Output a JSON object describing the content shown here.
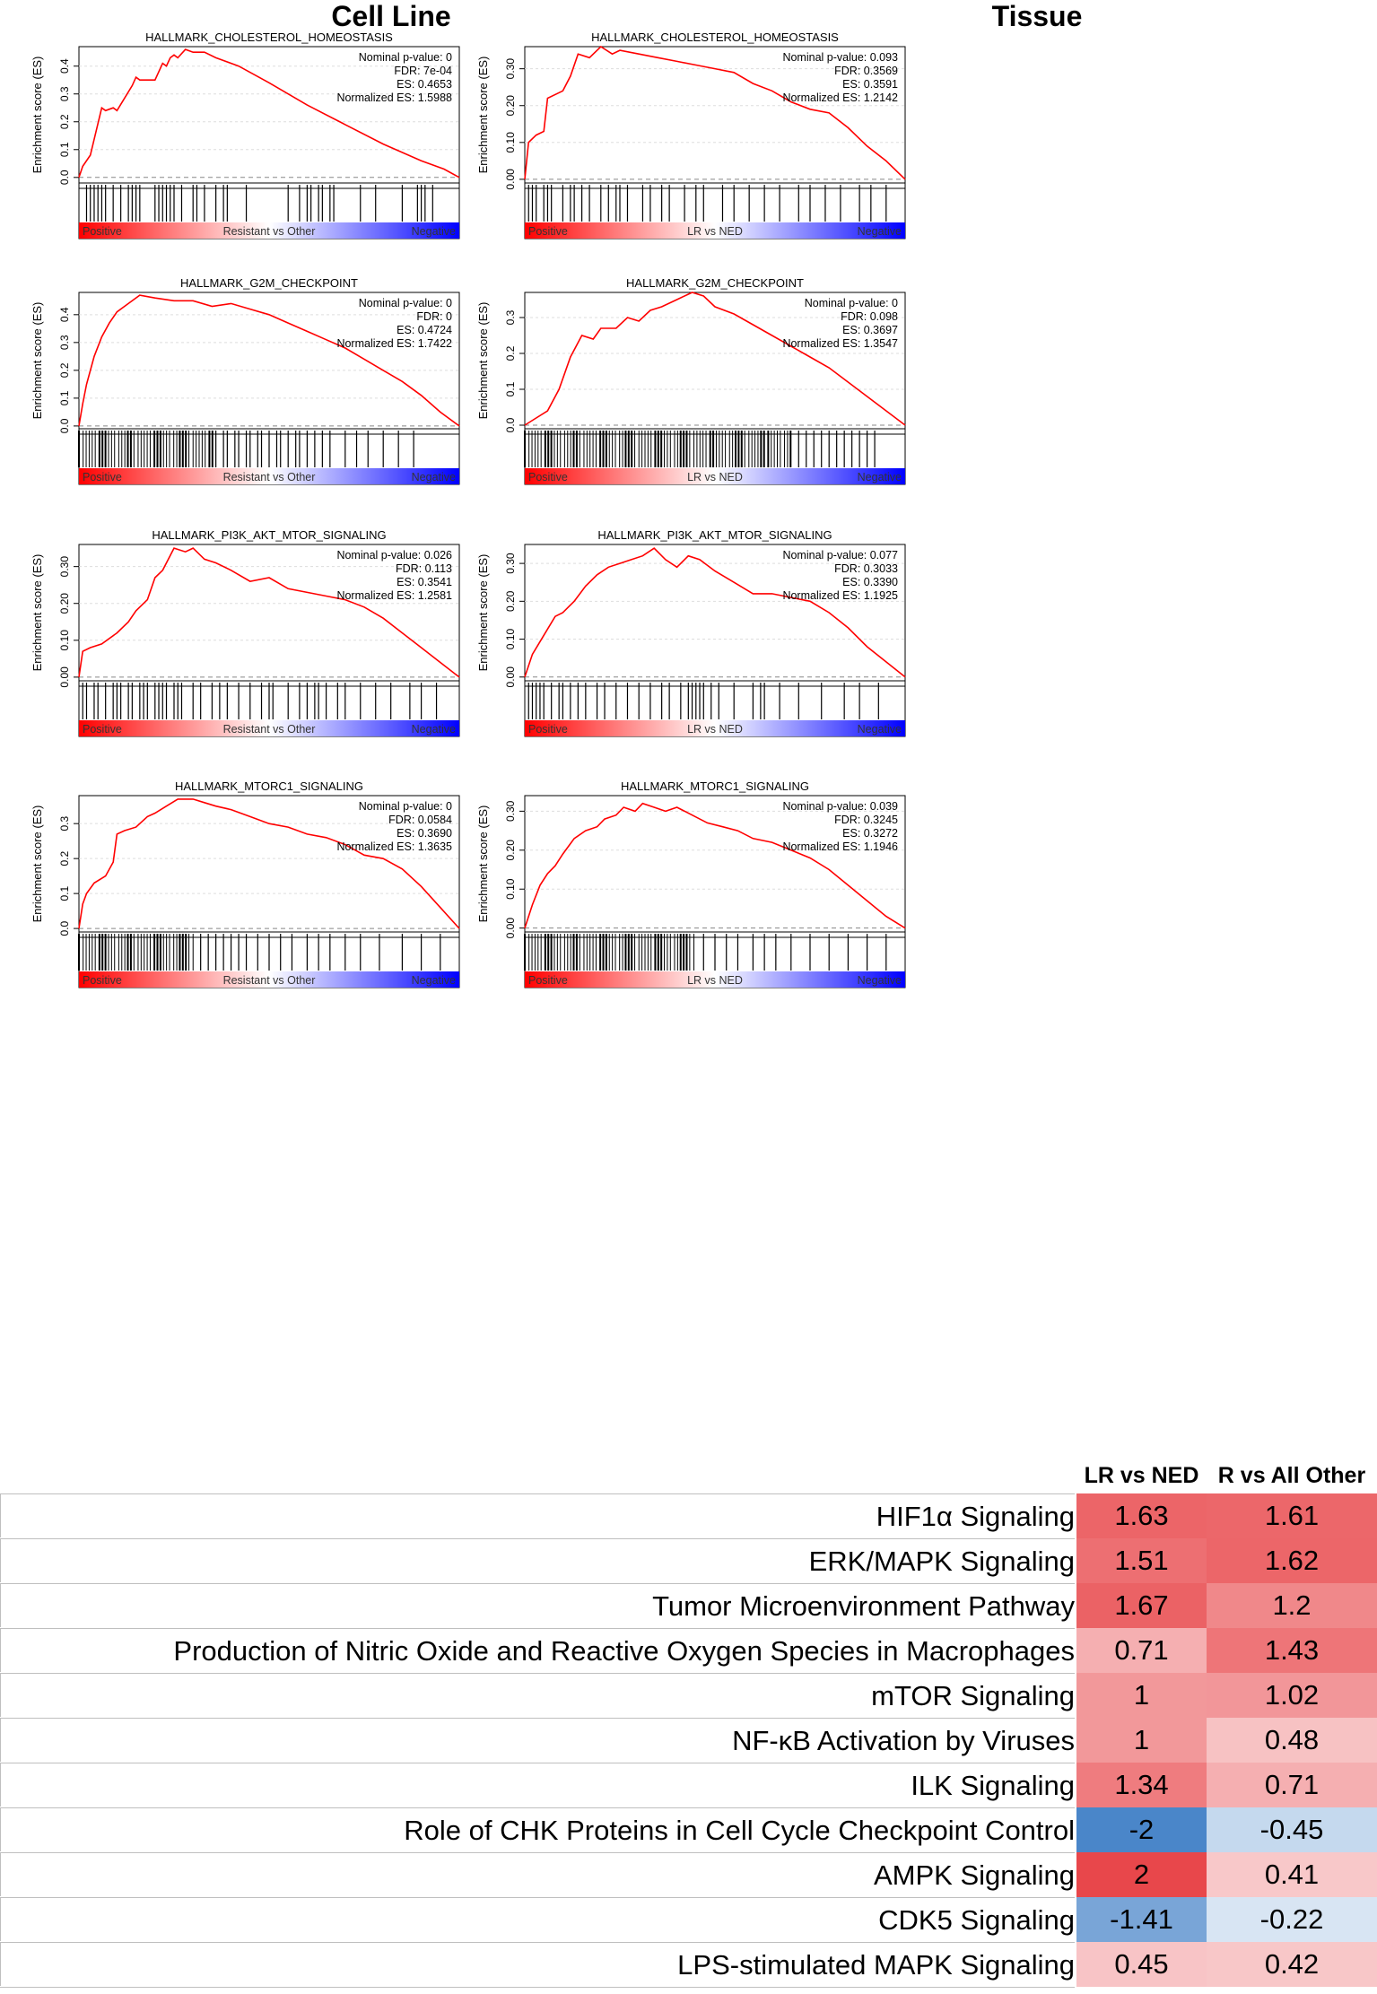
{
  "headers": {
    "left": "Cell Line",
    "right": "Tissue"
  },
  "colors": {
    "curve": "#ff0000",
    "positive": "#ff0000",
    "negative": "#0000ff",
    "heat_pos": "#e8474b",
    "heat_neg": "#4a86c9"
  },
  "chart_data": [
    {
      "type": "line",
      "column": "Cell Line",
      "title": "HALLMARK_CHOLESTEROL_HOMEOSTASIS",
      "ylabel": "Enrichment score (ES)",
      "ylim": [
        -0.02,
        0.47
      ],
      "yticks": [
        "0.0",
        "0.1",
        "0.2",
        "0.3",
        "0.4"
      ],
      "ytick_values": [
        0,
        0.1,
        0.2,
        0.3,
        0.4
      ],
      "stats": [
        "Nominal p-value: 0",
        "FDR: 7e-04",
        "ES: 0.4653",
        "Normalized ES: 1.5988"
      ],
      "gradient_labels": [
        "Positive",
        "Resistant vs Other",
        "Negative"
      ],
      "x": [
        0,
        0.01,
        0.03,
        0.06,
        0.07,
        0.09,
        0.1,
        0.14,
        0.15,
        0.16,
        0.2,
        0.22,
        0.23,
        0.24,
        0.25,
        0.26,
        0.28,
        0.3,
        0.33,
        0.36,
        0.42,
        0.5,
        0.6,
        0.7,
        0.8,
        0.9,
        0.96,
        1.0
      ],
      "values": [
        0,
        0.04,
        0.08,
        0.25,
        0.24,
        0.25,
        0.24,
        0.33,
        0.36,
        0.35,
        0.35,
        0.41,
        0.4,
        0.43,
        0.44,
        0.43,
        0.46,
        0.45,
        0.45,
        0.43,
        0.4,
        0.34,
        0.26,
        0.19,
        0.12,
        0.06,
        0.03,
        0
      ],
      "hits": [
        0.02,
        0.03,
        0.04,
        0.05,
        0.06,
        0.07,
        0.09,
        0.11,
        0.13,
        0.14,
        0.15,
        0.16,
        0.2,
        0.21,
        0.22,
        0.23,
        0.24,
        0.25,
        0.27,
        0.3,
        0.31,
        0.33,
        0.36,
        0.38,
        0.39,
        0.44,
        0.55,
        0.58,
        0.6,
        0.61,
        0.63,
        0.64,
        0.66,
        0.67,
        0.74,
        0.78,
        0.85,
        0.89,
        0.9,
        0.91,
        0.93
      ]
    },
    {
      "type": "line",
      "column": "Tissue",
      "title": "HALLMARK_CHOLESTEROL_HOMEOSTASIS",
      "ylabel": "Enrichment score (ES)",
      "ylim": [
        -0.01,
        0.36
      ],
      "yticks": [
        "0.00",
        "0.10",
        "0.20",
        "0.30"
      ],
      "ytick_values": [
        0,
        0.1,
        0.2,
        0.3
      ],
      "stats": [
        "Nominal p-value: 0.093",
        "FDR: 0.3569",
        "ES: 0.3591",
        "Normalized ES: 1.2142"
      ],
      "gradient_labels": [
        "Positive",
        "LR vs NED",
        "Negative"
      ],
      "x": [
        0,
        0.01,
        0.03,
        0.05,
        0.06,
        0.1,
        0.12,
        0.14,
        0.17,
        0.2,
        0.23,
        0.25,
        0.3,
        0.35,
        0.4,
        0.45,
        0.5,
        0.55,
        0.6,
        0.65,
        0.7,
        0.75,
        0.8,
        0.85,
        0.9,
        0.95,
        1.0
      ],
      "values": [
        0,
        0.1,
        0.12,
        0.13,
        0.22,
        0.24,
        0.28,
        0.34,
        0.33,
        0.36,
        0.34,
        0.35,
        0.34,
        0.33,
        0.32,
        0.31,
        0.3,
        0.29,
        0.26,
        0.24,
        0.21,
        0.19,
        0.18,
        0.14,
        0.09,
        0.05,
        0
      ],
      "hits": [
        0.01,
        0.02,
        0.03,
        0.05,
        0.06,
        0.07,
        0.1,
        0.12,
        0.13,
        0.15,
        0.17,
        0.2,
        0.22,
        0.24,
        0.25,
        0.27,
        0.31,
        0.33,
        0.36,
        0.38,
        0.42,
        0.45,
        0.47,
        0.52,
        0.55,
        0.59,
        0.63,
        0.67,
        0.72,
        0.75,
        0.79,
        0.83,
        0.88,
        0.91,
        0.95
      ]
    },
    {
      "type": "line",
      "column": "Cell Line",
      "title": "HALLMARK_G2M_CHECKPOINT",
      "ylabel": "Enrichment score (ES)",
      "ylim": [
        -0.01,
        0.48
      ],
      "yticks": [
        "0.0",
        "0.1",
        "0.2",
        "0.3",
        "0.4"
      ],
      "ytick_values": [
        0,
        0.1,
        0.2,
        0.3,
        0.4
      ],
      "stats": [
        "Nominal p-value: 0",
        "FDR: 0",
        "ES: 0.4724",
        "Normalized ES: 1.7422"
      ],
      "gradient_labels": [
        "Positive",
        "Resistant vs Other",
        "Negative"
      ],
      "x": [
        0,
        0.01,
        0.02,
        0.04,
        0.06,
        0.08,
        0.1,
        0.13,
        0.16,
        0.2,
        0.25,
        0.3,
        0.35,
        0.4,
        0.45,
        0.5,
        0.55,
        0.6,
        0.65,
        0.7,
        0.75,
        0.8,
        0.85,
        0.9,
        0.95,
        1.0
      ],
      "values": [
        0,
        0.08,
        0.15,
        0.25,
        0.32,
        0.37,
        0.41,
        0.44,
        0.47,
        0.46,
        0.45,
        0.45,
        0.43,
        0.44,
        0.42,
        0.4,
        0.37,
        0.34,
        0.31,
        0.28,
        0.24,
        0.2,
        0.16,
        0.11,
        0.05,
        0
      ],
      "hits_dense": [
        0,
        0.35
      ],
      "hits": [
        0.36,
        0.38,
        0.39,
        0.41,
        0.42,
        0.44,
        0.45,
        0.47,
        0.48,
        0.5,
        0.52,
        0.53,
        0.55,
        0.57,
        0.58,
        0.6,
        0.62,
        0.64,
        0.66,
        0.7,
        0.73,
        0.76,
        0.8,
        0.84,
        0.88
      ]
    },
    {
      "type": "line",
      "column": "Tissue",
      "title": "HALLMARK_G2M_CHECKPOINT",
      "ylabel": "Enrichment score (ES)",
      "ylim": [
        -0.01,
        0.37
      ],
      "yticks": [
        "0.0",
        "0.1",
        "0.2",
        "0.3"
      ],
      "ytick_values": [
        0,
        0.1,
        0.2,
        0.3
      ],
      "stats": [
        "Nominal p-value: 0",
        "FDR: 0.098",
        "ES: 0.3697",
        "Normalized ES: 1.3547"
      ],
      "gradient_labels": [
        "Positive",
        "LR vs NED",
        "Negative"
      ],
      "x": [
        0,
        0.03,
        0.06,
        0.09,
        0.12,
        0.15,
        0.18,
        0.2,
        0.24,
        0.27,
        0.3,
        0.33,
        0.36,
        0.4,
        0.44,
        0.47,
        0.5,
        0.55,
        0.6,
        0.65,
        0.7,
        0.75,
        0.8,
        0.85,
        0.9,
        0.95,
        1.0
      ],
      "values": [
        0,
        0.02,
        0.04,
        0.1,
        0.19,
        0.25,
        0.24,
        0.27,
        0.27,
        0.3,
        0.29,
        0.32,
        0.33,
        0.35,
        0.37,
        0.36,
        0.33,
        0.31,
        0.28,
        0.25,
        0.22,
        0.19,
        0.16,
        0.12,
        0.08,
        0.04,
        0
      ],
      "hits_dense": [
        0,
        0.7
      ],
      "hits": [
        0.72,
        0.74,
        0.76,
        0.78,
        0.8,
        0.82,
        0.84,
        0.86,
        0.88,
        0.9,
        0.92
      ]
    },
    {
      "type": "line",
      "column": "Cell Line",
      "title": "HALLMARK_PI3K_AKT_MTOR_SIGNALING",
      "ylabel": "Enrichment score (ES)",
      "ylim": [
        -0.01,
        0.36
      ],
      "yticks": [
        "0.00",
        "0.10",
        "0.20",
        "0.30"
      ],
      "ytick_values": [
        0,
        0.1,
        0.2,
        0.3
      ],
      "stats": [
        "Nominal p-value: 0.026",
        "FDR: 0.113",
        "ES: 0.3541",
        "Normalized ES: 1.2581"
      ],
      "gradient_labels": [
        "Positive",
        "Resistant vs Other",
        "Negative"
      ],
      "x": [
        0,
        0.01,
        0.03,
        0.06,
        0.1,
        0.13,
        0.15,
        0.18,
        0.2,
        0.22,
        0.24,
        0.25,
        0.28,
        0.3,
        0.33,
        0.36,
        0.4,
        0.45,
        0.5,
        0.55,
        0.6,
        0.65,
        0.7,
        0.75,
        0.8,
        0.85,
        0.9,
        0.95,
        1.0
      ],
      "values": [
        0,
        0.07,
        0.08,
        0.09,
        0.12,
        0.15,
        0.18,
        0.21,
        0.27,
        0.29,
        0.33,
        0.35,
        0.34,
        0.35,
        0.32,
        0.31,
        0.29,
        0.26,
        0.27,
        0.24,
        0.23,
        0.22,
        0.21,
        0.19,
        0.16,
        0.12,
        0.08,
        0.04,
        0
      ],
      "hits": [
        0.01,
        0.02,
        0.04,
        0.05,
        0.07,
        0.09,
        0.1,
        0.11,
        0.13,
        0.14,
        0.16,
        0.17,
        0.18,
        0.2,
        0.21,
        0.22,
        0.23,
        0.25,
        0.26,
        0.27,
        0.3,
        0.32,
        0.35,
        0.37,
        0.39,
        0.42,
        0.45,
        0.48,
        0.5,
        0.51,
        0.55,
        0.58,
        0.6,
        0.62,
        0.63,
        0.65,
        0.68,
        0.7,
        0.74,
        0.78,
        0.82,
        0.87,
        0.9,
        0.94
      ]
    },
    {
      "type": "line",
      "column": "Tissue",
      "title": "HALLMARK_PI3K_AKT_MTOR_SIGNALING",
      "ylabel": "Enrichment score (ES)",
      "ylim": [
        -0.01,
        0.35
      ],
      "yticks": [
        "0.00",
        "0.10",
        "0.20",
        "0.30"
      ],
      "ytick_values": [
        0,
        0.1,
        0.2,
        0.3
      ],
      "stats": [
        "Nominal p-value: 0.077",
        "FDR: 0.3033",
        "ES: 0.3390",
        "Normalized ES: 1.1925"
      ],
      "gradient_labels": [
        "Positive",
        "LR vs NED",
        "Negative"
      ],
      "x": [
        0,
        0.02,
        0.05,
        0.08,
        0.1,
        0.13,
        0.16,
        0.19,
        0.22,
        0.25,
        0.28,
        0.31,
        0.34,
        0.37,
        0.4,
        0.43,
        0.46,
        0.5,
        0.55,
        0.6,
        0.65,
        0.7,
        0.75,
        0.8,
        0.85,
        0.9,
        0.95,
        1.0
      ],
      "values": [
        0,
        0.06,
        0.11,
        0.16,
        0.17,
        0.2,
        0.24,
        0.27,
        0.29,
        0.3,
        0.31,
        0.32,
        0.34,
        0.31,
        0.29,
        0.32,
        0.31,
        0.28,
        0.25,
        0.22,
        0.22,
        0.21,
        0.2,
        0.17,
        0.13,
        0.08,
        0.04,
        0
      ],
      "hits": [
        0.01,
        0.02,
        0.03,
        0.04,
        0.05,
        0.07,
        0.09,
        0.1,
        0.12,
        0.14,
        0.16,
        0.19,
        0.21,
        0.24,
        0.27,
        0.3,
        0.33,
        0.36,
        0.38,
        0.41,
        0.43,
        0.44,
        0.45,
        0.46,
        0.47,
        0.49,
        0.51,
        0.55,
        0.6,
        0.62,
        0.63,
        0.67,
        0.72,
        0.78,
        0.84,
        0.88,
        0.93
      ]
    },
    {
      "type": "line",
      "column": "Cell Line",
      "title": "HALLMARK_MTORC1_SIGNALING",
      "ylabel": "Enrichment score (ES)",
      "ylim": [
        -0.01,
        0.38
      ],
      "yticks": [
        "0.0",
        "0.1",
        "0.2",
        "0.3"
      ],
      "ytick_values": [
        0,
        0.1,
        0.2,
        0.3
      ],
      "stats": [
        "Nominal p-value: 0",
        "FDR: 0.0584",
        "ES: 0.3690",
        "Normalized ES: 1.3635"
      ],
      "gradient_labels": [
        "Positive",
        "Resistant vs Other",
        "Negative"
      ],
      "x": [
        0,
        0.01,
        0.02,
        0.04,
        0.07,
        0.09,
        0.1,
        0.12,
        0.15,
        0.18,
        0.2,
        0.23,
        0.26,
        0.3,
        0.33,
        0.36,
        0.4,
        0.45,
        0.5,
        0.55,
        0.6,
        0.65,
        0.7,
        0.75,
        0.8,
        0.85,
        0.9,
        0.95,
        1.0
      ],
      "values": [
        0,
        0.07,
        0.1,
        0.13,
        0.15,
        0.19,
        0.27,
        0.28,
        0.29,
        0.32,
        0.33,
        0.35,
        0.37,
        0.37,
        0.36,
        0.35,
        0.34,
        0.32,
        0.3,
        0.29,
        0.27,
        0.26,
        0.24,
        0.21,
        0.2,
        0.17,
        0.12,
        0.06,
        0
      ],
      "hits_dense": [
        0,
        0.3
      ],
      "hits": [
        0.32,
        0.34,
        0.36,
        0.38,
        0.4,
        0.42,
        0.44,
        0.47,
        0.5,
        0.53,
        0.56,
        0.6,
        0.63,
        0.66,
        0.7,
        0.74,
        0.79,
        0.85,
        0.9,
        0.95
      ]
    },
    {
      "type": "line",
      "column": "Tissue",
      "title": "HALLMARK_MTORC1_SIGNALING",
      "ylabel": "Enrichment score (ES)",
      "ylim": [
        -0.01,
        0.34
      ],
      "yticks": [
        "0.00",
        "0.10",
        "0.20",
        "0.30"
      ],
      "ytick_values": [
        0,
        0.1,
        0.2,
        0.3
      ],
      "stats": [
        "Nominal p-value: 0.039",
        "FDR: 0.3245",
        "ES: 0.3272",
        "Normalized ES: 1.1946"
      ],
      "gradient_labels": [
        "Positive",
        "LR vs NED",
        "Negative"
      ],
      "x": [
        0,
        0.02,
        0.04,
        0.06,
        0.08,
        0.1,
        0.13,
        0.16,
        0.19,
        0.21,
        0.24,
        0.26,
        0.29,
        0.31,
        0.34,
        0.37,
        0.4,
        0.44,
        0.48,
        0.52,
        0.56,
        0.6,
        0.65,
        0.7,
        0.75,
        0.8,
        0.85,
        0.9,
        0.95,
        1.0
      ],
      "values": [
        0,
        0.06,
        0.11,
        0.14,
        0.16,
        0.19,
        0.23,
        0.25,
        0.26,
        0.28,
        0.29,
        0.31,
        0.3,
        0.32,
        0.31,
        0.3,
        0.31,
        0.29,
        0.27,
        0.26,
        0.25,
        0.23,
        0.22,
        0.2,
        0.18,
        0.15,
        0.11,
        0.07,
        0.03,
        0
      ],
      "hits_dense": [
        0,
        0.45
      ],
      "hits": [
        0.47,
        0.5,
        0.53,
        0.56,
        0.6,
        0.63,
        0.66,
        0.7,
        0.75,
        0.8,
        0.85,
        0.9,
        0.95
      ]
    },
    {
      "type": "heatmap",
      "column_headers": [
        "LR vs NED",
        "R vs All Other"
      ],
      "rows": [
        {
          "label": "HIF1α Signaling",
          "values": [
            1.63,
            1.61
          ]
        },
        {
          "label": "ERK/MAPK Signaling",
          "values": [
            1.51,
            1.62
          ]
        },
        {
          "label": "Tumor Microenvironment Pathway",
          "values": [
            1.67,
            1.2
          ]
        },
        {
          "label": "Production of Nitric Oxide and Reactive Oxygen Species in Macrophages",
          "values": [
            0.71,
            1.43
          ]
        },
        {
          "label": "mTOR Signaling",
          "values": [
            1,
            1.02
          ]
        },
        {
          "label": "NF-κB Activation by Viruses",
          "values": [
            1,
            0.48
          ]
        },
        {
          "label": "ILK Signaling",
          "values": [
            1.34,
            0.71
          ]
        },
        {
          "label": "Role of CHK Proteins in Cell Cycle Checkpoint Control",
          "values": [
            -2,
            -0.45
          ]
        },
        {
          "label": "AMPK Signaling",
          "values": [
            2,
            0.41
          ]
        },
        {
          "label": "CDK5 Signaling",
          "values": [
            -1.41,
            -0.22
          ]
        },
        {
          "label": "LPS-stimulated MAPK Signaling",
          "values": [
            0.45,
            0.42
          ]
        }
      ]
    }
  ]
}
